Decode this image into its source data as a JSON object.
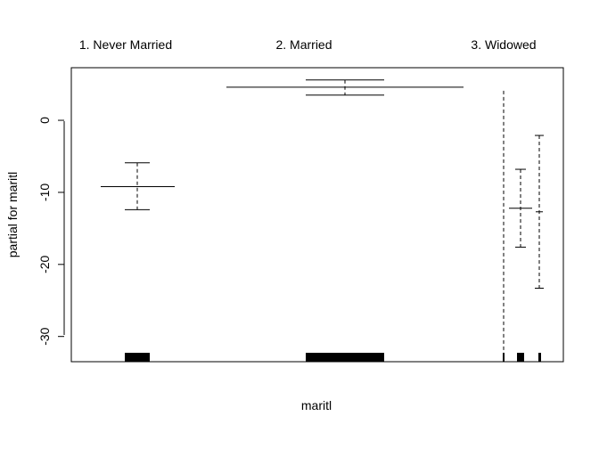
{
  "chart_data": {
    "type": "partial-dependence-factor",
    "xlabel": "maritl",
    "ylabel": "partial for maritl",
    "ylim": [
      -33.5,
      7.3
    ],
    "yticks": [
      0,
      -10,
      -20,
      -30
    ],
    "categories": [
      {
        "label": "1. Never Married",
        "estimate": -9.2,
        "ci_low": -12.4,
        "ci_high": -5.9
      },
      {
        "label": "2. Married",
        "estimate": 4.6,
        "ci_low": 3.5,
        "ci_high": 5.6
      },
      {
        "label": "3. Widowed",
        "estimate": -12.2,
        "ci_low": -17.6,
        "ci_high": -6.8
      }
    ],
    "extra_dashed_intervals": [
      {
        "ci_low": -33.5,
        "ci_high": 4.1,
        "cap_low": false,
        "cap_high": false
      },
      {
        "ci_low": -23.3,
        "ci_high": -2.1,
        "center": -12.7,
        "cap_low": true,
        "cap_high": true
      }
    ],
    "rug": "frequency blocks along x-axis"
  }
}
